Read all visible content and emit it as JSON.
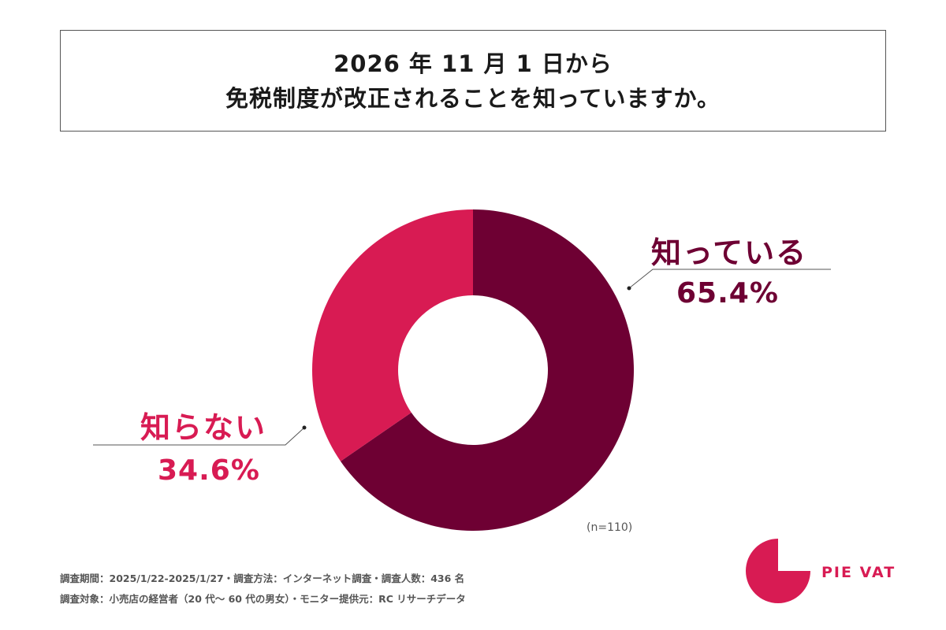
{
  "header": {
    "title_line1": "2026 年 11 月 1 日から",
    "title_line2": "免税制度が改正されることを知っていますか。"
  },
  "chart_data": {
    "type": "pie",
    "title": "2026 年 11 月 1 日から 免税制度が改正されることを知っていますか。",
    "donut": true,
    "slices": [
      {
        "label": "知っている",
        "value": 65.4,
        "value_label": "65.4%",
        "color": "#6e0033"
      },
      {
        "label": "知らない",
        "value": 34.6,
        "value_label": "34.6%",
        "color": "#d81b53"
      }
    ],
    "sample_size_label": "(n=110)"
  },
  "footer": {
    "line1": "調査期間：2025/1/22-2025/1/27・調査方法：インターネット調査・調査人数：436 名",
    "line2": "調査対象：小売店の経営者（20 代〜 60 代の男女）・モニター提供元：RC リサーチデータ"
  },
  "brand": {
    "name": "PIE VAT",
    "color": "#d81b53"
  }
}
